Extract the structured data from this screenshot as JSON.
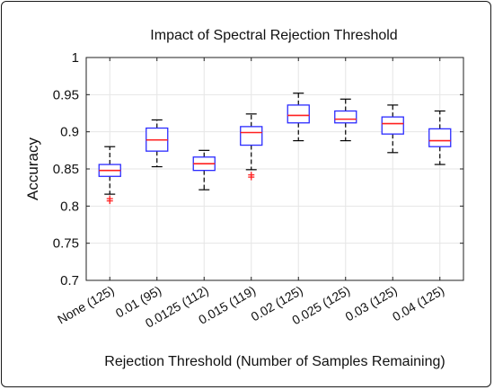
{
  "chart_data": {
    "type": "box",
    "title": "Impact of Spectral Rejection Threshold",
    "xlabel": "Rejection Threshold (Number of Samples Remaining)",
    "ylabel": "Accuracy",
    "ylim": [
      0.7,
      1.0
    ],
    "yticks": [
      0.7,
      0.75,
      0.8,
      0.85,
      0.9,
      0.95,
      1
    ],
    "ytick_labels": [
      "0.7",
      "0.75",
      "0.8",
      "0.85",
      "0.9",
      "0.95",
      "1"
    ],
    "grid": true,
    "categories": [
      "None (125)",
      "0.01 (95)",
      "0.0125 (112)",
      "0.015 (119)",
      "0.02 (125)",
      "0.025 (125)",
      "0.03 (125)",
      "0.04 (125)"
    ],
    "boxes": [
      {
        "whisker_low": 0.816,
        "q1": 0.84,
        "median": 0.848,
        "q3": 0.856,
        "whisker_high": 0.88,
        "outliers": [
          0.81,
          0.807
        ]
      },
      {
        "whisker_low": 0.853,
        "q1": 0.874,
        "median": 0.889,
        "q3": 0.905,
        "whisker_high": 0.916,
        "outliers": []
      },
      {
        "whisker_low": 0.822,
        "q1": 0.848,
        "median": 0.857,
        "q3": 0.866,
        "whisker_high": 0.875,
        "outliers": []
      },
      {
        "whisker_low": 0.849,
        "q1": 0.882,
        "median": 0.899,
        "q3": 0.907,
        "whisker_high": 0.924,
        "outliers": [
          0.842,
          0.839
        ]
      },
      {
        "whisker_low": 0.888,
        "q1": 0.912,
        "median": 0.922,
        "q3": 0.936,
        "whisker_high": 0.952,
        "outliers": []
      },
      {
        "whisker_low": 0.888,
        "q1": 0.912,
        "median": 0.917,
        "q3": 0.928,
        "whisker_high": 0.944,
        "outliers": []
      },
      {
        "whisker_low": 0.872,
        "q1": 0.897,
        "median": 0.911,
        "q3": 0.92,
        "whisker_high": 0.936,
        "outliers": []
      },
      {
        "whisker_low": 0.856,
        "q1": 0.88,
        "median": 0.888,
        "q3": 0.904,
        "whisker_high": 0.928,
        "outliers": []
      }
    ],
    "colors": {
      "box": "#2b2bff",
      "median": "#ff2020",
      "outlier": "#ff2020",
      "whisker": "#000000",
      "grid": "#e6e6e6"
    }
  }
}
